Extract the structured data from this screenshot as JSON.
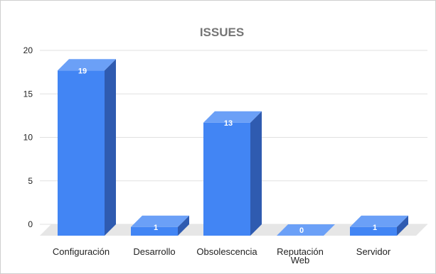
{
  "chart_data": {
    "type": "bar",
    "title": "ISSUES",
    "categories": [
      "Configuración",
      "Desarrollo",
      "Obsolescencia",
      "Reputación Web",
      "Servidor"
    ],
    "category_lines": [
      [
        "Configuración"
      ],
      [
        "Desarrollo"
      ],
      [
        "Obsolescencia"
      ],
      [
        "Reputación",
        "Web"
      ],
      [
        "Servidor"
      ]
    ],
    "values": [
      19,
      1,
      13,
      0,
      1
    ],
    "data_labels": [
      "19",
      "1",
      "13",
      "0",
      "1"
    ],
    "yticks": [
      "0",
      "5",
      "10",
      "15",
      "20"
    ],
    "ylim": [
      0,
      20
    ],
    "grid": true,
    "legend": "none",
    "style": "3d",
    "colors": {
      "front": "#4285f4",
      "top": "#6ba0f7",
      "side": "#2f5bb0",
      "floor": "#e6e6e6",
      "grid": "#e0e0e0"
    }
  }
}
